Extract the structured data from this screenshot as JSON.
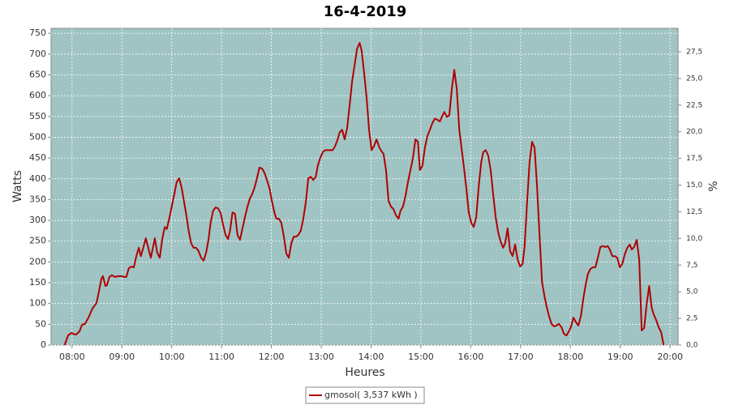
{
  "chart_data": {
    "type": "line",
    "title": "16-4-2019",
    "xlabel": "Heures",
    "ylabel": "Watts",
    "y2label": "%",
    "xlim": [
      7.58,
      20.16
    ],
    "ylim": [
      0,
      762
    ],
    "y2lim": [
      0,
      29.7
    ],
    "xticks": [
      {
        "value": 8,
        "label": "08:00"
      },
      {
        "value": 9,
        "label": "09:00"
      },
      {
        "value": 10,
        "label": "10:00"
      },
      {
        "value": 11,
        "label": "11:00"
      },
      {
        "value": 12,
        "label": "12:00"
      },
      {
        "value": 13,
        "label": "13:00"
      },
      {
        "value": 14,
        "label": "14:00"
      },
      {
        "value": 15,
        "label": "15:00"
      },
      {
        "value": 16,
        "label": "16:00"
      },
      {
        "value": 17,
        "label": "17:00"
      },
      {
        "value": 18,
        "label": "18:00"
      },
      {
        "value": 19,
        "label": "19:00"
      },
      {
        "value": 20,
        "label": "20:00"
      }
    ],
    "yticks": [
      0,
      50,
      100,
      150,
      200,
      250,
      300,
      350,
      400,
      450,
      500,
      550,
      600,
      650,
      700,
      750
    ],
    "y2ticks": [
      {
        "value": 0,
        "label": "0,0"
      },
      {
        "value": 2.5,
        "label": "2,5"
      },
      {
        "value": 5,
        "label": "5,0"
      },
      {
        "value": 7.5,
        "label": "7,5"
      },
      {
        "value": 10,
        "label": "10,0"
      },
      {
        "value": 12.5,
        "label": "12,5"
      },
      {
        "value": 15,
        "label": "15,0"
      },
      {
        "value": 17.5,
        "label": "17,5"
      },
      {
        "value": 20,
        "label": "20,0"
      },
      {
        "value": 22.5,
        "label": "22,5"
      },
      {
        "value": 25,
        "label": "25,0"
      },
      {
        "value": 27.5,
        "label": "27,5"
      }
    ],
    "grid": true,
    "background": "#a0c4c4",
    "legend": "bottom",
    "x": [
      7.85,
      7.92,
      7.98,
      8.08,
      8.15,
      8.2,
      8.26,
      8.33,
      8.41,
      8.49,
      8.54,
      8.59,
      8.62,
      8.67,
      8.7,
      8.75,
      8.8,
      8.86,
      8.93,
      8.99,
      9.04,
      9.09,
      9.14,
      9.19,
      9.24,
      9.29,
      9.34,
      9.38,
      9.43,
      9.48,
      9.53,
      9.58,
      9.63,
      9.66,
      9.71,
      9.76,
      9.81,
      9.86,
      9.9,
      9.95,
      10.0,
      10.05,
      10.1,
      10.15,
      10.2,
      10.25,
      10.3,
      10.34,
      10.39,
      10.44,
      10.49,
      10.54,
      10.59,
      10.64,
      10.69,
      10.74,
      10.78,
      10.83,
      10.88,
      10.93,
      10.98,
      11.03,
      11.08,
      11.13,
      11.17,
      11.22,
      11.27,
      11.32,
      11.37,
      11.42,
      11.47,
      11.52,
      11.57,
      11.61,
      11.66,
      11.71,
      11.76,
      11.81,
      11.86,
      11.91,
      11.96,
      12.01,
      12.06,
      12.1,
      12.15,
      12.2,
      12.25,
      12.3,
      12.35,
      12.4,
      12.45,
      12.5,
      12.54,
      12.59,
      12.64,
      12.69,
      12.74,
      12.79,
      12.84,
      12.89,
      12.93,
      12.98,
      13.03,
      13.08,
      13.13,
      13.18,
      13.23,
      13.28,
      13.33,
      13.37,
      13.42,
      13.47,
      13.52,
      13.57,
      13.62,
      13.67,
      13.72,
      13.77,
      13.81,
      13.86,
      13.91,
      13.96,
      14.01,
      14.06,
      14.11,
      14.16,
      14.2,
      14.25,
      14.3,
      14.35,
      14.4,
      14.45,
      14.5,
      14.55,
      14.59,
      14.64,
      14.69,
      14.74,
      14.79,
      14.84,
      14.89,
      14.94,
      14.98,
      15.03,
      15.08,
      15.13,
      15.18,
      15.23,
      15.28,
      15.33,
      15.38,
      15.42,
      15.47,
      15.52,
      15.57,
      15.62,
      15.67,
      15.72,
      15.77,
      15.82,
      15.86,
      15.91,
      15.96,
      16.01,
      16.06,
      16.11,
      16.16,
      16.21,
      16.25,
      16.3,
      16.35,
      16.4,
      16.45,
      16.5,
      16.55,
      16.6,
      16.65,
      16.69,
      16.74,
      16.79,
      16.84,
      16.89,
      16.94,
      16.99,
      17.04,
      17.08,
      17.13,
      17.18,
      17.23,
      17.28,
      17.33,
      17.38,
      17.43,
      17.48,
      17.52,
      17.57,
      17.62,
      17.67,
      17.72,
      17.77,
      17.82,
      17.87,
      17.92,
      17.96,
      18.01,
      18.06,
      18.11,
      18.16,
      18.21,
      18.26,
      18.31,
      18.35,
      18.4,
      18.45,
      18.5,
      18.55,
      18.6,
      18.65,
      18.7,
      18.75,
      18.79,
      18.84,
      18.89,
      18.94,
      18.99,
      19.04,
      19.09,
      19.14,
      19.19,
      19.23,
      19.28,
      19.33,
      19.38,
      19.43,
      19.48,
      19.53,
      19.58,
      19.63,
      19.67,
      19.72,
      19.77,
      19.82,
      19.87
    ],
    "series": [
      {
        "name": "gmosol( 3,537 kWh )",
        "color": "#b00000",
        "values": [
          0,
          23,
          29,
          25,
          33,
          49,
          51,
          66,
          88,
          101,
          129,
          160,
          166,
          142,
          144,
          164,
          168,
          164,
          166,
          166,
          164,
          164,
          185,
          189,
          187,
          214,
          234,
          214,
          234,
          257,
          234,
          210,
          238,
          257,
          222,
          210,
          255,
          284,
          279,
          304,
          333,
          362,
          392,
          401,
          378,
          343,
          308,
          275,
          245,
          234,
          234,
          226,
          210,
          203,
          222,
          255,
          294,
          323,
          331,
          329,
          318,
          290,
          265,
          255,
          275,
          319,
          316,
          265,
          253,
          281,
          308,
          333,
          353,
          362,
          378,
          401,
          427,
          425,
          415,
          397,
          378,
          347,
          319,
          304,
          304,
          294,
          261,
          220,
          210,
          245,
          261,
          261,
          265,
          275,
          304,
          343,
          401,
          405,
          397,
          405,
          431,
          450,
          464,
          469,
          469,
          469,
          469,
          479,
          495,
          512,
          518,
          495,
          522,
          577,
          635,
          674,
          713,
          727,
          709,
          655,
          596,
          518,
          469,
          479,
          495,
          477,
          468,
          460,
          421,
          347,
          333,
          327,
          312,
          304,
          323,
          333,
          358,
          392,
          421,
          450,
          495,
          489,
          421,
          431,
          475,
          503,
          518,
          534,
          545,
          542,
          538,
          549,
          561,
          549,
          553,
          616,
          662,
          616,
          518,
          469,
          431,
          378,
          319,
          294,
          284,
          308,
          382,
          440,
          464,
          469,
          456,
          421,
          362,
          308,
          271,
          249,
          234,
          245,
          281,
          226,
          214,
          242,
          206,
          189,
          195,
          236,
          343,
          440,
          489,
          475,
          382,
          265,
          152,
          117,
          94,
          70,
          51,
          45,
          47,
          51,
          43,
          27,
          23,
          31,
          43,
          66,
          55,
          47,
          70,
          113,
          148,
          171,
          183,
          187,
          187,
          210,
          236,
          238,
          236,
          238,
          230,
          214,
          214,
          210,
          187,
          195,
          218,
          234,
          242,
          230,
          236,
          253,
          206,
          35,
          41,
          99,
          142,
          90,
          74,
          60,
          43,
          31,
          0
        ]
      }
    ]
  }
}
